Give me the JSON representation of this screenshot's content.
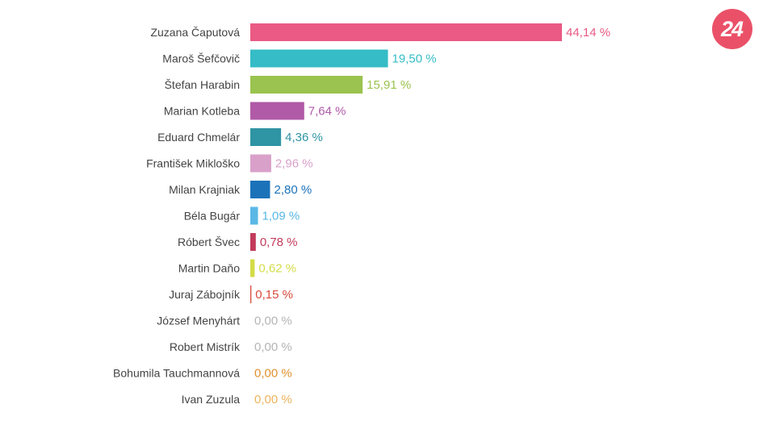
{
  "logo": {
    "text": "24",
    "color": "#ea5168"
  },
  "chart_data": {
    "type": "bar",
    "orientation": "horizontal",
    "unit": "%",
    "grid": false,
    "legend": false,
    "xlim": [
      0,
      44.14
    ],
    "categories": [
      "Zuzana Čaputová",
      "Maroš Šefčovič",
      "Štefan Harabin",
      "Marian Kotleba",
      "Eduard Chmelár",
      "František Mikloško",
      "Milan Krajniak",
      "Béla Bugár",
      "Róbert Švec",
      "Martin Daňo",
      "Juraj Zábojník",
      "József Menyhárt",
      "Robert Mistrík",
      "Bohumila Tauchmannová",
      "Ivan Zuzula"
    ],
    "values": [
      44.14,
      19.5,
      15.91,
      7.64,
      4.36,
      2.96,
      2.8,
      1.09,
      0.78,
      0.62,
      0.15,
      0.0,
      0.0,
      0.0,
      0.0
    ],
    "value_labels": [
      "44,14 %",
      "19,50 %",
      "15,91 %",
      "7,64 %",
      "4,36 %",
      "2,96 %",
      "2,80 %",
      "1,09 %",
      "0,78 %",
      "0,62 %",
      "0,15 %",
      "0,00 %",
      "0,00 %",
      "0,00 %",
      "0,00 %"
    ],
    "colors": [
      "#ea5a84",
      "#35bcc6",
      "#9bc34f",
      "#b05aa8",
      "#2f94a3",
      "#d9a0ca",
      "#1b72b9",
      "#5ab8e6",
      "#c23a5a",
      "#d4dc48",
      "#d84a3c",
      "#b5b5b5",
      "#b5b5b5",
      "#e0902f",
      "#ecb35c"
    ]
  }
}
